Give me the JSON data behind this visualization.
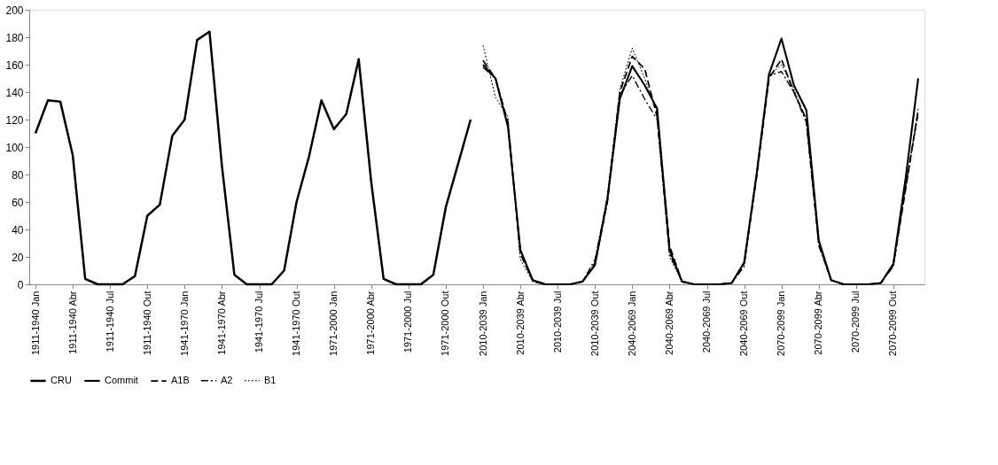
{
  "chart_data": {
    "type": "line",
    "categories": [
      "1911-1940 Jan",
      null,
      null,
      "1911-1940 Abr",
      null,
      null,
      "1911-1940 Jul",
      null,
      null,
      "1911-1940 Out",
      null,
      null,
      "1941-1970 Jan",
      null,
      null,
      "1941-1970 Abr",
      null,
      null,
      "1941-1970 Jul",
      null,
      null,
      "1941-1970 Out",
      null,
      null,
      "1971-2000 Jan",
      null,
      null,
      "1971-2000 Abr",
      null,
      null,
      "1971-2000 Jul",
      null,
      null,
      "1971-2000 Out",
      null,
      null,
      "2010-2039 Jan",
      null,
      null,
      "2010-2039 Abr",
      null,
      null,
      "2010-2039 Jul",
      null,
      null,
      "2010-2039 Out",
      null,
      null,
      "2040-2069 Jan",
      null,
      null,
      "2040-2069 Abr",
      null,
      null,
      "2040-2069 Jul",
      null,
      null,
      "2040-2069 Out",
      null,
      null,
      "2070-2099 Jan",
      null,
      null,
      "2070-2099 Abr",
      null,
      null,
      "2070-2099 Jul",
      null,
      null,
      "2070-2099 Out",
      null,
      null
    ],
    "series": [
      {
        "name": "CRU",
        "color": "#000000",
        "line_style": "solid",
        "values": [
          110,
          134,
          133,
          94,
          4,
          0,
          0,
          0,
          6,
          50,
          58,
          108,
          120,
          178,
          184,
          86,
          7,
          0,
          0,
          0,
          10,
          60,
          93,
          134,
          113,
          124,
          164,
          75,
          4,
          0,
          0,
          0,
          7,
          56,
          88,
          120,
          null,
          null,
          null,
          null,
          null,
          null,
          null,
          null,
          null,
          null,
          null,
          null,
          null,
          null,
          null,
          null,
          null,
          null,
          null,
          null,
          null,
          null,
          null,
          null,
          null,
          null,
          null,
          null,
          null,
          null,
          null,
          null,
          null,
          null,
          null,
          null
        ]
      },
      {
        "name": "Commit",
        "color": "#000000",
        "line_style": "solid",
        "values": [
          null,
          null,
          null,
          null,
          null,
          null,
          null,
          null,
          null,
          null,
          null,
          null,
          null,
          null,
          null,
          null,
          null,
          null,
          null,
          null,
          null,
          null,
          null,
          null,
          null,
          null,
          null,
          null,
          null,
          null,
          null,
          null,
          null,
          null,
          null,
          null,
          160,
          150,
          115,
          25,
          3,
          0,
          0,
          0,
          2,
          14,
          62,
          135,
          159,
          145,
          128,
          25,
          2,
          0,
          0,
          0,
          1,
          16,
          80,
          153,
          179,
          145,
          127,
          32,
          3,
          0,
          0,
          0,
          1,
          15,
          78,
          150
        ]
      },
      {
        "name": "A1B",
        "color": "#000000",
        "line_style": "dashed",
        "values": [
          null,
          null,
          null,
          null,
          null,
          null,
          null,
          null,
          null,
          null,
          null,
          null,
          null,
          null,
          null,
          null,
          null,
          null,
          null,
          null,
          null,
          null,
          null,
          null,
          null,
          null,
          null,
          null,
          null,
          null,
          null,
          null,
          null,
          null,
          null,
          null,
          163,
          150,
          118,
          22,
          3,
          0,
          0,
          0,
          2,
          15,
          60,
          140,
          166,
          157,
          122,
          28,
          2,
          0,
          0,
          0,
          1,
          15,
          78,
          150,
          164,
          140,
          120,
          30,
          3,
          0,
          0,
          0,
          1,
          14,
          70,
          127
        ]
      },
      {
        "name": "A2",
        "color": "#000000",
        "line_style": "dashdot",
        "values": [
          null,
          null,
          null,
          null,
          null,
          null,
          null,
          null,
          null,
          null,
          null,
          null,
          null,
          null,
          null,
          null,
          null,
          null,
          null,
          null,
          null,
          null,
          null,
          null,
          null,
          null,
          null,
          null,
          null,
          null,
          null,
          null,
          null,
          null,
          null,
          null,
          158,
          150,
          115,
          25,
          2,
          0,
          0,
          0,
          2,
          18,
          62,
          138,
          152,
          135,
          120,
          22,
          2,
          0,
          0,
          0,
          1,
          13,
          80,
          152,
          155,
          140,
          118,
          28,
          3,
          0,
          0,
          0,
          1,
          13,
          72,
          125
        ]
      },
      {
        "name": "B1",
        "color": "#000000",
        "line_style": "dotted",
        "values": [
          null,
          null,
          null,
          null,
          null,
          null,
          null,
          null,
          null,
          null,
          null,
          null,
          null,
          null,
          null,
          null,
          null,
          null,
          null,
          null,
          null,
          null,
          null,
          null,
          null,
          null,
          null,
          null,
          null,
          null,
          null,
          null,
          null,
          null,
          null,
          null,
          174,
          136,
          122,
          18,
          2,
          0,
          0,
          0,
          2,
          16,
          65,
          142,
          172,
          150,
          125,
          20,
          2,
          0,
          0,
          0,
          1,
          15,
          80,
          152,
          160,
          142,
          120,
          30,
          3,
          0,
          0,
          0,
          1,
          14,
          70,
          128
        ]
      }
    ],
    "ylim": [
      0,
      200
    ],
    "yticks": [
      0,
      20,
      40,
      60,
      80,
      100,
      120,
      140,
      160,
      180,
      200
    ],
    "grid": false,
    "legend": "bottom"
  }
}
